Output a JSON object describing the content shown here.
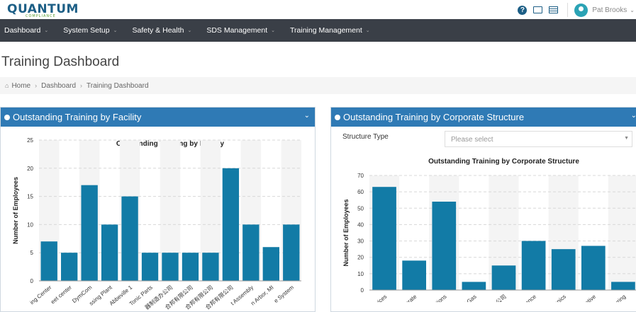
{
  "brand": {
    "name": "QUANTUM",
    "tagline": "COMPLIANCE"
  },
  "header": {
    "user_name": "Pat Brooks"
  },
  "nav": {
    "items": [
      {
        "label": "Dashboard"
      },
      {
        "label": "System Setup"
      },
      {
        "label": "Safety & Health"
      },
      {
        "label": "SDS Management"
      },
      {
        "label": "Training Management"
      }
    ]
  },
  "page": {
    "title": "Training Dashboard"
  },
  "breadcrumb": {
    "items": [
      "Home",
      "Dashboard",
      "Training Dashboard"
    ]
  },
  "panels": {
    "facility": {
      "title": "Outstanding Training by Facility"
    },
    "corporate": {
      "title": "Outstanding Training by Corporate Structure",
      "structure_label": "Structure Type",
      "structure_placeholder": "Please select"
    }
  },
  "colors": {
    "bar": "#127ba6",
    "panel_head": "#2f7ab5",
    "nav": "#3a3f47"
  },
  "chart_data": [
    {
      "type": "bar",
      "title": "Outstanding Training by Facility",
      "ylabel": "Number of Employees",
      "ylim": [
        0,
        25
      ],
      "yticks": [
        0,
        5,
        10,
        15,
        20,
        25
      ],
      "categories": [
        "ing Center",
        "eet center",
        "DymCom",
        "ssing Plant",
        "Abbeville 1",
        "Tonic Parts",
        "器制造办公司",
        "合邦有限公司",
        "合邦有限公司",
        "合邦有限公司",
        "t Assembly",
        "n Arbor, MI",
        "e System"
      ],
      "values": [
        7,
        5,
        17,
        10,
        15,
        5,
        5,
        5,
        5,
        20,
        10,
        6,
        10
      ]
    },
    {
      "type": "bar",
      "title": "Outstanding Training by Corporate Structure",
      "ylabel": "Number of Employees",
      "ylim": [
        0,
        70
      ],
      "yticks": [
        0,
        10,
        20,
        30,
        40,
        50,
        60,
        70
      ],
      "categories": [
        "vices",
        "orate",
        "ations",
        "d Gas",
        "司) 公司",
        "liance",
        "ronics",
        "otive",
        "turing"
      ],
      "values": [
        63,
        18,
        54,
        5,
        15,
        30,
        25,
        27,
        5
      ]
    }
  ]
}
